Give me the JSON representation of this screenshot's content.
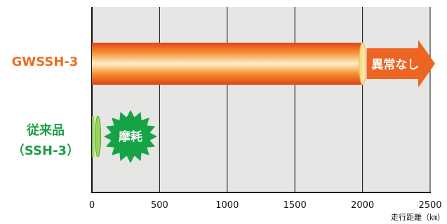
{
  "colors": {
    "plot_bg": "#e6e6e4",
    "grid": "#111111",
    "gwssh_label": "#ee6e22",
    "conventional_label": "#1e9e46",
    "bar_orange": "#f07a1e",
    "bar_green": "#7cc642",
    "arrow": "#ee6422",
    "burst": "#16a346"
  },
  "chart_data": {
    "type": "bar",
    "orientation": "horizontal",
    "categories": [
      "GWSSH-3",
      "従来品（SSH-3）"
    ],
    "category_lines": [
      [
        "GWSSH-3"
      ],
      [
        "従来品",
        "（SSH-3）"
      ]
    ],
    "values": [
      2000,
      50
    ],
    "xlabel": "走行距離（㎞）",
    "ylabel": "",
    "xlim": [
      0,
      2500
    ],
    "xticks": [
      0,
      500,
      1000,
      1500,
      2000,
      2500
    ],
    "xtick_labels": [
      "0",
      "500",
      "1000",
      "1500",
      "2000",
      "2500"
    ],
    "grid": true,
    "annotations": [
      "異常なし",
      "摩耗"
    ]
  }
}
